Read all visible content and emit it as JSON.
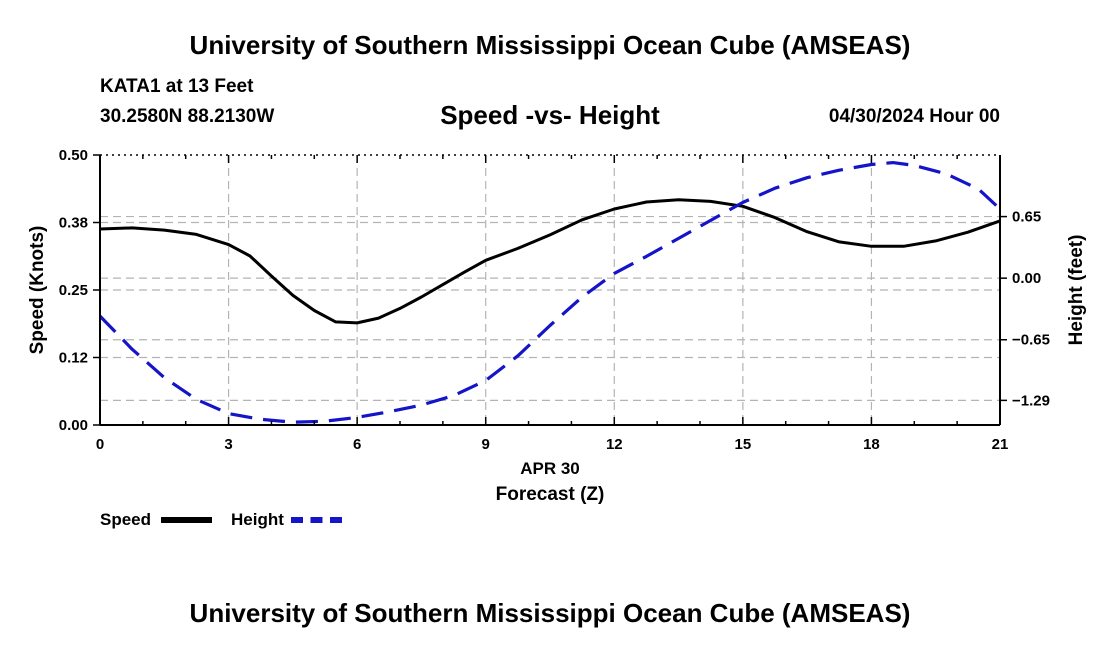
{
  "header": {
    "title": "University of Southern Mississippi Ocean Cube (AMSEAS)",
    "station": "KATA1 at 13 Feet",
    "coordinates": "30.2580N  88.2130W",
    "chart_title": "Speed -vs- Height",
    "date": "04/30/2024 Hour 00"
  },
  "footer": {
    "title": "University of Southern Mississippi Ocean Cube (AMSEAS)"
  },
  "legend": {
    "speed_label": "Speed",
    "height_label": "Height"
  },
  "colors": {
    "speed": "#000000",
    "height": "#1414c8",
    "grid": "#b4b4b4"
  },
  "chart_data": {
    "type": "line",
    "title": "Speed -vs- Height",
    "xlabel": "Forecast (Z)",
    "xlabel_date": "APR 30",
    "ylabel": "Speed (Knots)",
    "y2label": "Height (feet)",
    "xlim": [
      0,
      21
    ],
    "ylim": [
      0,
      0.5
    ],
    "y2lim": [
      -1.55,
      1.3
    ],
    "x_ticks": [
      0,
      3,
      6,
      9,
      12,
      15,
      18,
      21
    ],
    "x_tick_labels": [
      "0",
      "3",
      "6",
      "9",
      "12",
      "15",
      "18",
      "21"
    ],
    "y_ticks": [
      0,
      0.125,
      0.25,
      0.375,
      0.5
    ],
    "y_tick_labels": [
      "0.00",
      "0.12",
      "0.25",
      "0.38",
      "0.50"
    ],
    "y2_ticks": [
      -1.29,
      -0.65,
      0,
      0.65
    ],
    "y2_tick_labels": [
      "−1.29",
      "−0.65",
      "0.00",
      "0.65"
    ],
    "grid": true,
    "legend_position": "bottom-left",
    "series": [
      {
        "name": "Speed",
        "axis": "left",
        "style": "solid",
        "x": [
          0,
          0.75,
          1.5,
          2.25,
          3,
          3.5,
          4,
          4.5,
          5,
          5.5,
          6,
          6.5,
          7,
          7.5,
          8,
          8.5,
          9,
          9.75,
          10.5,
          11.25,
          12,
          12.75,
          13.5,
          14.25,
          15,
          15.75,
          16.5,
          17.25,
          18,
          18.75,
          19.5,
          20.25,
          21
        ],
        "values": [
          0.363,
          0.365,
          0.361,
          0.353,
          0.334,
          0.313,
          0.276,
          0.24,
          0.212,
          0.191,
          0.189,
          0.198,
          0.216,
          0.237,
          0.26,
          0.283,
          0.305,
          0.327,
          0.352,
          0.38,
          0.4,
          0.413,
          0.417,
          0.414,
          0.405,
          0.384,
          0.358,
          0.339,
          0.331,
          0.331,
          0.341,
          0.357,
          0.378
        ]
      },
      {
        "name": "Height",
        "axis": "right",
        "style": "dashed",
        "x": [
          0,
          0.75,
          1.5,
          2.25,
          3,
          3.75,
          4.5,
          5.25,
          6,
          6.75,
          7.5,
          8.25,
          9,
          9.75,
          10.5,
          11.25,
          12,
          12.75,
          13.5,
          14.25,
          15,
          15.75,
          16.5,
          17.25,
          18,
          18.5,
          19,
          19.75,
          20.5,
          21
        ],
        "values": [
          -0.4,
          -0.75,
          -1.05,
          -1.28,
          -1.43,
          -1.49,
          -1.52,
          -1.51,
          -1.47,
          -1.41,
          -1.34,
          -1.24,
          -1.08,
          -0.82,
          -0.5,
          -0.2,
          0.05,
          0.23,
          0.42,
          0.61,
          0.8,
          0.95,
          1.06,
          1.14,
          1.2,
          1.22,
          1.19,
          1.1,
          0.94,
          0.73
        ]
      }
    ]
  }
}
